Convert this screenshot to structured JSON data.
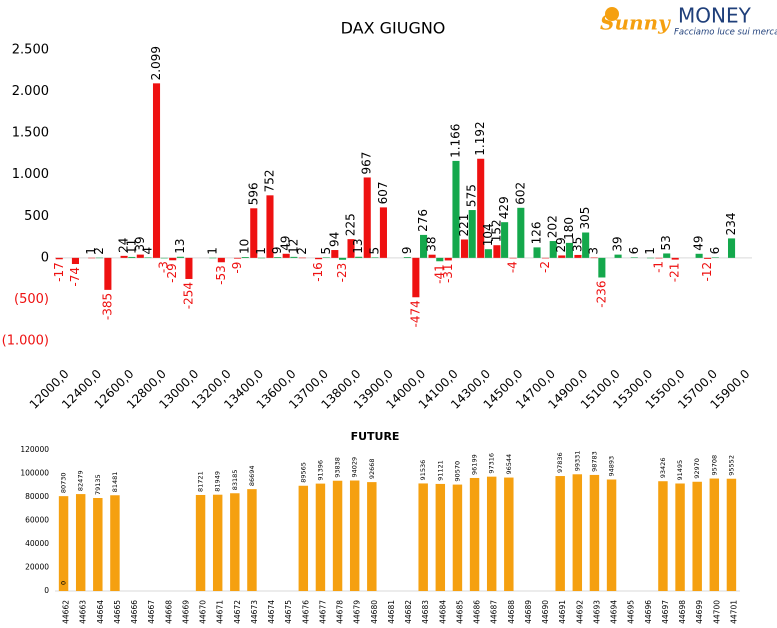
{
  "logo": {
    "brand_left": "Sunny",
    "brand_right": "MONEY",
    "tagline": "Facciamo luce sui mercati"
  },
  "chart_data": [
    {
      "type": "bar",
      "title": "DAX GIUGNO",
      "categories": [
        "12000,0",
        null,
        "12400,0",
        null,
        "12600,0",
        null,
        "12800,0",
        null,
        "13000,0",
        null,
        "13200,0",
        null,
        "13400,0",
        null,
        "13600,0",
        null,
        "13700,0",
        null,
        "13800,0",
        null,
        "13900,0",
        null,
        "14000,0",
        null,
        "14100,0",
        null,
        "14300,0",
        null,
        "14500,0",
        null,
        "14700,0",
        null,
        "14900,0",
        null,
        "15100,0",
        null,
        "15300,0",
        null,
        "15500,0",
        null,
        "15700,0",
        null,
        "15900,0"
      ],
      "series": [
        {
          "color": "#ee1111",
          "values": [
            -17,
            -74,
            1,
            -385,
            24,
            39,
            2099,
            -29,
            -254,
            null,
            -53,
            -9,
            596,
            752,
            49,
            2,
            -16,
            94,
            225,
            967,
            607,
            null,
            -474,
            38,
            -31,
            221,
            1192,
            152,
            -4,
            null,
            -2,
            29,
            35,
            3,
            null,
            null,
            null,
            -1,
            -21,
            null,
            -12,
            null,
            null
          ],
          "value_labels": [
            "-17",
            "-74",
            "1",
            "-385",
            "24",
            "39",
            "2.099",
            "-29",
            "-254",
            null,
            "-53",
            "-9",
            "596",
            "752",
            "49",
            "2",
            "-16",
            "94",
            "225",
            "967",
            "607",
            null,
            "-474",
            "38",
            "-31",
            "221",
            "1.192",
            "152",
            "-4",
            null,
            "-2",
            "29",
            "35",
            "3",
            null,
            null,
            null,
            "-1",
            "-21",
            null,
            "-12",
            null,
            null
          ]
        },
        {
          "color": "#14a84c",
          "values": [
            null,
            null,
            2,
            null,
            11,
            4,
            -3,
            13,
            null,
            1,
            null,
            10,
            1,
            9,
            12,
            null,
            5,
            -23,
            13,
            5,
            null,
            9,
            276,
            -41,
            1166,
            575,
            104,
            429,
            602,
            126,
            202,
            180,
            305,
            -236,
            39,
            6,
            1,
            53,
            null,
            49,
            6,
            234,
            null
          ],
          "value_labels": [
            null,
            null,
            "2",
            null,
            "11",
            "4",
            "-3",
            "13",
            null,
            "1",
            null,
            "10",
            "1",
            "9",
            "12",
            null,
            "5",
            "-23",
            "13",
            "5",
            null,
            "9",
            "276",
            "-41",
            "1.166",
            "575",
            "104",
            "429",
            "602",
            "126",
            "202",
            "180",
            "305",
            "-236",
            "39",
            "6",
            "1",
            "53",
            null,
            "49",
            "6",
            "234",
            null
          ]
        }
      ],
      "ylim": [
        -1000,
        2500
      ],
      "yticks": [
        {
          "value": -1000,
          "label": "(1.000)"
        },
        {
          "value": -500,
          "label": "(500)"
        },
        0,
        500,
        {
          "value": 1000,
          "label": "1.000"
        },
        {
          "value": 1500,
          "label": "1.500"
        },
        {
          "value": 2000,
          "label": "2.000"
        },
        {
          "value": 2500,
          "label": "2.500"
        }
      ],
      "grid": false
    },
    {
      "type": "bar",
      "title": "FUTURE",
      "color": "#f5a010",
      "categories": [
        "44662",
        "44663",
        "44664",
        "44665",
        "44666",
        "44667",
        "44668",
        "44669",
        "44670",
        "44671",
        "44672",
        "44673",
        "44674",
        "44675",
        "44676",
        "44677",
        "44678",
        "44679",
        "44680",
        "44681",
        "44682",
        "44683",
        "44684",
        "44685",
        "44686",
        "44687",
        "44688",
        "44689",
        "44690",
        "44691",
        "44692",
        "44693",
        "44694",
        "44695",
        "44696",
        "44697",
        "44698",
        "44699",
        "44700",
        "44701"
      ],
      "values": [
        80730,
        82479,
        79135,
        81481,
        null,
        null,
        null,
        null,
        81721,
        81949,
        83185,
        86694,
        null,
        null,
        89565,
        91396,
        93838,
        94029,
        92668,
        null,
        null,
        91536,
        91121,
        90570,
        96199,
        97316,
        96544,
        null,
        null,
        97836,
        99331,
        98783,
        94893,
        null,
        null,
        93426,
        91495,
        92970,
        95708,
        95552
      ],
      "annotations": [
        "0"
      ],
      "ylim": [
        0,
        120000
      ],
      "yticks": [
        0,
        20000,
        40000,
        60000,
        80000,
        100000,
        120000
      ],
      "grid": false
    }
  ]
}
